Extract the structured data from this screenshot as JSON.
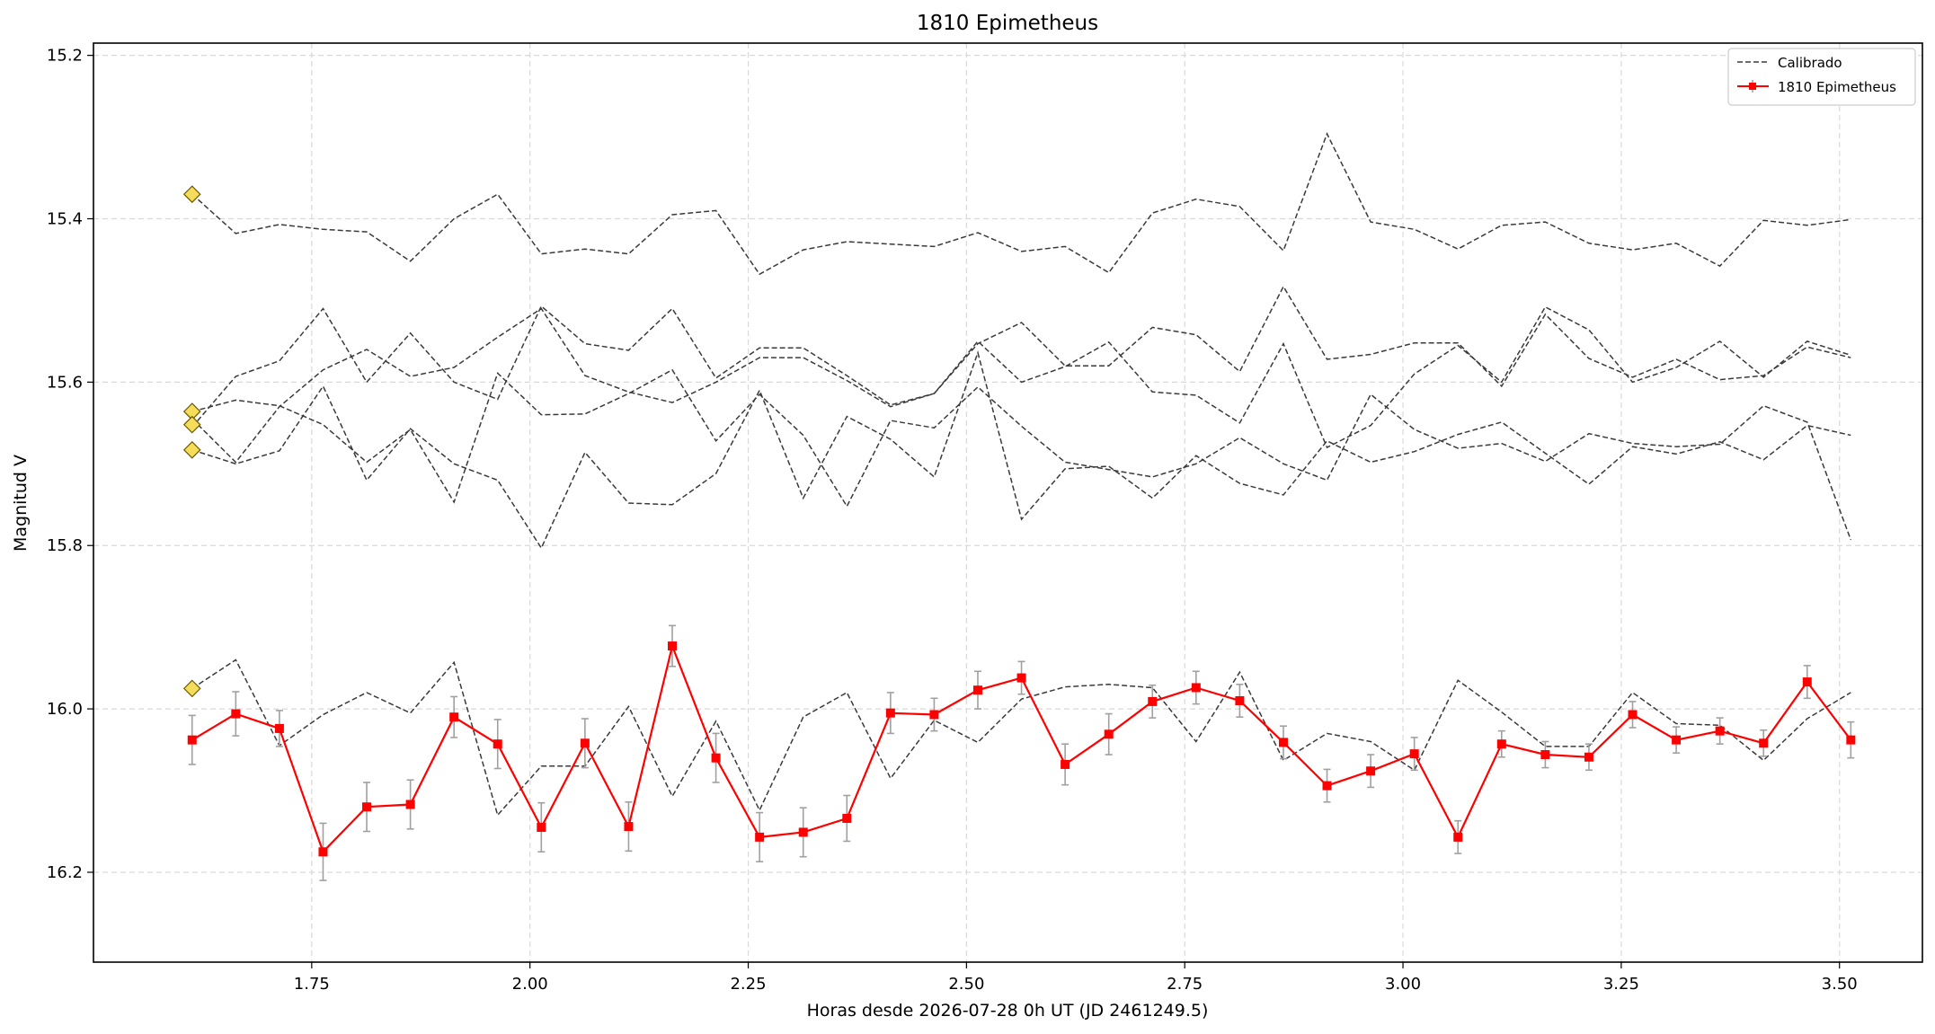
{
  "chart_data": {
    "type": "line",
    "title": "1810 Epimetheus",
    "xlabel": "Horas desde 2026-07-28 0h UT (JD 2461249.5)",
    "ylabel": "Magnitud V",
    "xlim": [
      1.5,
      3.595
    ],
    "ylim": [
      16.31,
      15.185
    ],
    "y_inverted": true,
    "grid": true,
    "legend_position": "top-right",
    "x_ticks": [
      1.75,
      2.0,
      2.25,
      2.5,
      2.75,
      3.0,
      3.25,
      3.5
    ],
    "x_tick_labels": [
      "1.75",
      "2.00",
      "2.25",
      "2.50",
      "2.75",
      "3.00",
      "3.25",
      "3.50"
    ],
    "y_ticks": [
      15.2,
      15.4,
      15.6,
      15.8,
      16.0,
      16.2
    ],
    "y_tick_labels": [
      "15.2",
      "15.4",
      "15.6",
      "15.8",
      "16.0",
      "16.2"
    ],
    "x": [
      1.613,
      1.663,
      1.713,
      1.763,
      1.813,
      1.863,
      1.913,
      1.963,
      2.013,
      2.063,
      2.113,
      2.163,
      2.213,
      2.263,
      2.313,
      2.363,
      2.413,
      2.463,
      2.513,
      2.563,
      2.613,
      2.663,
      2.713,
      2.763,
      2.813,
      2.863,
      2.913,
      2.963,
      3.013,
      3.063,
      3.113,
      3.163,
      3.213,
      3.263,
      3.313,
      3.363,
      3.413,
      3.463,
      3.513
    ],
    "legend": [
      {
        "label": "Calibrado",
        "style": "dashed",
        "color": "#3a3a3a"
      },
      {
        "label": "1810 Epimetheus",
        "style": "solid-marker",
        "color": "#ff0000"
      }
    ],
    "colors": {
      "target": "#ff0000",
      "comparison": "#3a3a3a",
      "reference_marker": "#f5dc5a",
      "errorbar": "#a0a0a0"
    },
    "comparison_series": [
      {
        "values": [
          15.37,
          15.418,
          15.407,
          15.413,
          15.416,
          15.452,
          15.4,
          15.37,
          15.443,
          15.437,
          15.443,
          15.395,
          15.39,
          15.468,
          15.438,
          15.428,
          15.431,
          15.434,
          15.417,
          15.44,
          15.434,
          15.466,
          15.393,
          15.376,
          15.385,
          15.439,
          15.296,
          15.404,
          15.413,
          15.437,
          15.408,
          15.404,
          15.43,
          15.438,
          15.43,
          15.458,
          15.402,
          15.408,
          15.401
        ]
      },
      {
        "values": [
          15.655,
          15.593,
          15.574,
          15.51,
          15.6,
          15.54,
          15.6,
          15.621,
          15.507,
          15.553,
          15.561,
          15.51,
          15.595,
          15.558,
          15.558,
          15.592,
          15.628,
          15.614,
          15.55,
          15.6,
          15.581,
          15.551,
          15.612,
          15.616,
          15.65,
          15.553,
          15.68,
          15.653,
          15.59,
          15.555,
          15.6,
          15.508,
          15.536,
          15.6,
          15.582,
          15.55,
          15.594,
          15.55,
          15.567
        ]
      },
      {
        "values": [
          15.645,
          15.698,
          15.63,
          15.585,
          15.56,
          15.593,
          15.582,
          15.545,
          15.51,
          15.592,
          15.612,
          15.625,
          15.6,
          15.57,
          15.57,
          15.598,
          15.63,
          15.614,
          15.553,
          15.527,
          15.58,
          15.58,
          15.533,
          15.542,
          15.587,
          15.483,
          15.572,
          15.566,
          15.552,
          15.552,
          15.605,
          15.517,
          15.571,
          15.594,
          15.572,
          15.597,
          15.592,
          15.557,
          15.57
        ]
      },
      {
        "values": [
          15.636,
          15.622,
          15.629,
          15.652,
          15.698,
          15.658,
          15.747,
          15.589,
          15.64,
          15.639,
          15.614,
          15.585,
          15.672,
          15.615,
          15.665,
          15.752,
          15.647,
          15.656,
          15.606,
          15.654,
          15.698,
          15.707,
          15.716,
          15.7,
          15.668,
          15.7,
          15.72,
          15.615,
          15.658,
          15.681,
          15.675,
          15.697,
          15.663,
          15.675,
          15.679,
          15.676,
          15.629,
          15.649,
          15.793
        ]
      },
      {
        "values": [
          15.683,
          15.7,
          15.684,
          15.605,
          15.72,
          15.657,
          15.7,
          15.72,
          15.803,
          15.686,
          15.748,
          15.75,
          15.712,
          15.61,
          15.742,
          15.642,
          15.67,
          15.716,
          15.564,
          15.768,
          15.706,
          15.703,
          15.742,
          15.69,
          15.724,
          15.738,
          15.672,
          15.698,
          15.685,
          15.664,
          15.649,
          15.687,
          15.725,
          15.679,
          15.688,
          15.673,
          15.695,
          15.653,
          15.665
        ]
      },
      {
        "values": [
          15.975,
          15.94,
          16.045,
          16.007,
          15.98,
          16.005,
          15.943,
          16.13,
          16.07,
          16.07,
          15.997,
          16.107,
          16.015,
          16.124,
          16.01,
          15.98,
          16.085,
          16.014,
          16.041,
          15.988,
          15.973,
          15.97,
          15.974,
          16.04,
          15.955,
          16.063,
          16.03,
          16.04,
          16.075,
          15.965,
          16.004,
          16.046,
          16.046,
          15.98,
          16.018,
          16.02,
          16.063,
          16.012,
          15.98
        ]
      }
    ],
    "reference_points": [
      15.37,
      15.636,
      15.652,
      15.683,
      15.975
    ],
    "target_series": {
      "name": "1810 Epimetheus",
      "values": [
        16.038,
        16.006,
        16.024,
        16.175,
        16.12,
        16.117,
        16.01,
        16.043,
        16.145,
        16.042,
        16.144,
        15.923,
        16.06,
        16.157,
        16.151,
        16.134,
        16.005,
        16.007,
        15.977,
        15.962,
        16.068,
        16.031,
        15.991,
        15.974,
        15.99,
        16.041,
        16.094,
        16.076,
        16.055,
        16.157,
        16.043,
        16.056,
        16.059,
        16.007,
        16.038,
        16.027,
        16.042,
        15.967,
        16.038
      ],
      "errors": [
        0.03,
        0.027,
        0.022,
        0.035,
        0.03,
        0.03,
        0.025,
        0.03,
        0.03,
        0.03,
        0.03,
        0.025,
        0.03,
        0.03,
        0.03,
        0.028,
        0.025,
        0.02,
        0.023,
        0.02,
        0.025,
        0.025,
        0.02,
        0.02,
        0.02,
        0.02,
        0.02,
        0.02,
        0.02,
        0.02,
        0.016,
        0.016,
        0.016,
        0.016,
        0.016,
        0.016,
        0.016,
        0.02,
        0.022
      ]
    }
  }
}
